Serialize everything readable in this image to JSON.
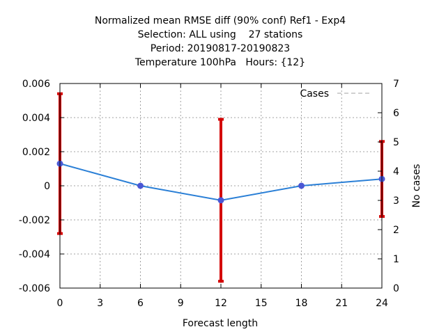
{
  "chart_data": {
    "type": "line",
    "title_lines": [
      "Normalized mean RMSE diff (90% conf) Ref1 - Exp4",
      "Selection: ALL using    27 stations",
      "Period: 20190817-20190823",
      "Temperature 100hPa   Hours: {12}"
    ],
    "xlabel": "Forecast length",
    "ylabel": "",
    "y2label": "No cases",
    "xlim": [
      0,
      24
    ],
    "ylim": [
      -0.006,
      0.006
    ],
    "y2lim": [
      0,
      7
    ],
    "xticks": [
      "0",
      "3",
      "6",
      "9",
      "12",
      "15",
      "18",
      "21",
      "24"
    ],
    "xtick_values": [
      0,
      3,
      6,
      9,
      12,
      15,
      18,
      21,
      24
    ],
    "yticks": [
      "-0.006",
      "-0.004",
      "-0.002",
      "0",
      "0.002",
      "0.004",
      "0.006"
    ],
    "ytick_values": [
      -0.006,
      -0.004,
      -0.002,
      0,
      0.002,
      0.004,
      0.006
    ],
    "y2ticks": [
      "0",
      "1",
      "2",
      "3",
      "4",
      "5",
      "6",
      "7"
    ],
    "y2tick_values": [
      0,
      1,
      2,
      3,
      4,
      5,
      6,
      7
    ],
    "grid": true,
    "legend": {
      "label": "Cases",
      "position": "top-right"
    },
    "series": [
      {
        "x": [
          0,
          6,
          12,
          18,
          24
        ],
        "values": [
          0.0013,
          0.0,
          -0.00085,
          0.0,
          0.0004
        ],
        "error_low": [
          -0.0028,
          0.0,
          -0.0056,
          0.0,
          -0.0018
        ],
        "error_high": [
          0.0054,
          0.0,
          0.0039,
          0.0,
          0.0026
        ]
      }
    ],
    "colors": {
      "line": "#2a7fd6",
      "marker": "#4a57d4",
      "errorbar": "#d40000",
      "grid": "#a0a0a0",
      "legend_line": "#a0a0a0"
    }
  }
}
